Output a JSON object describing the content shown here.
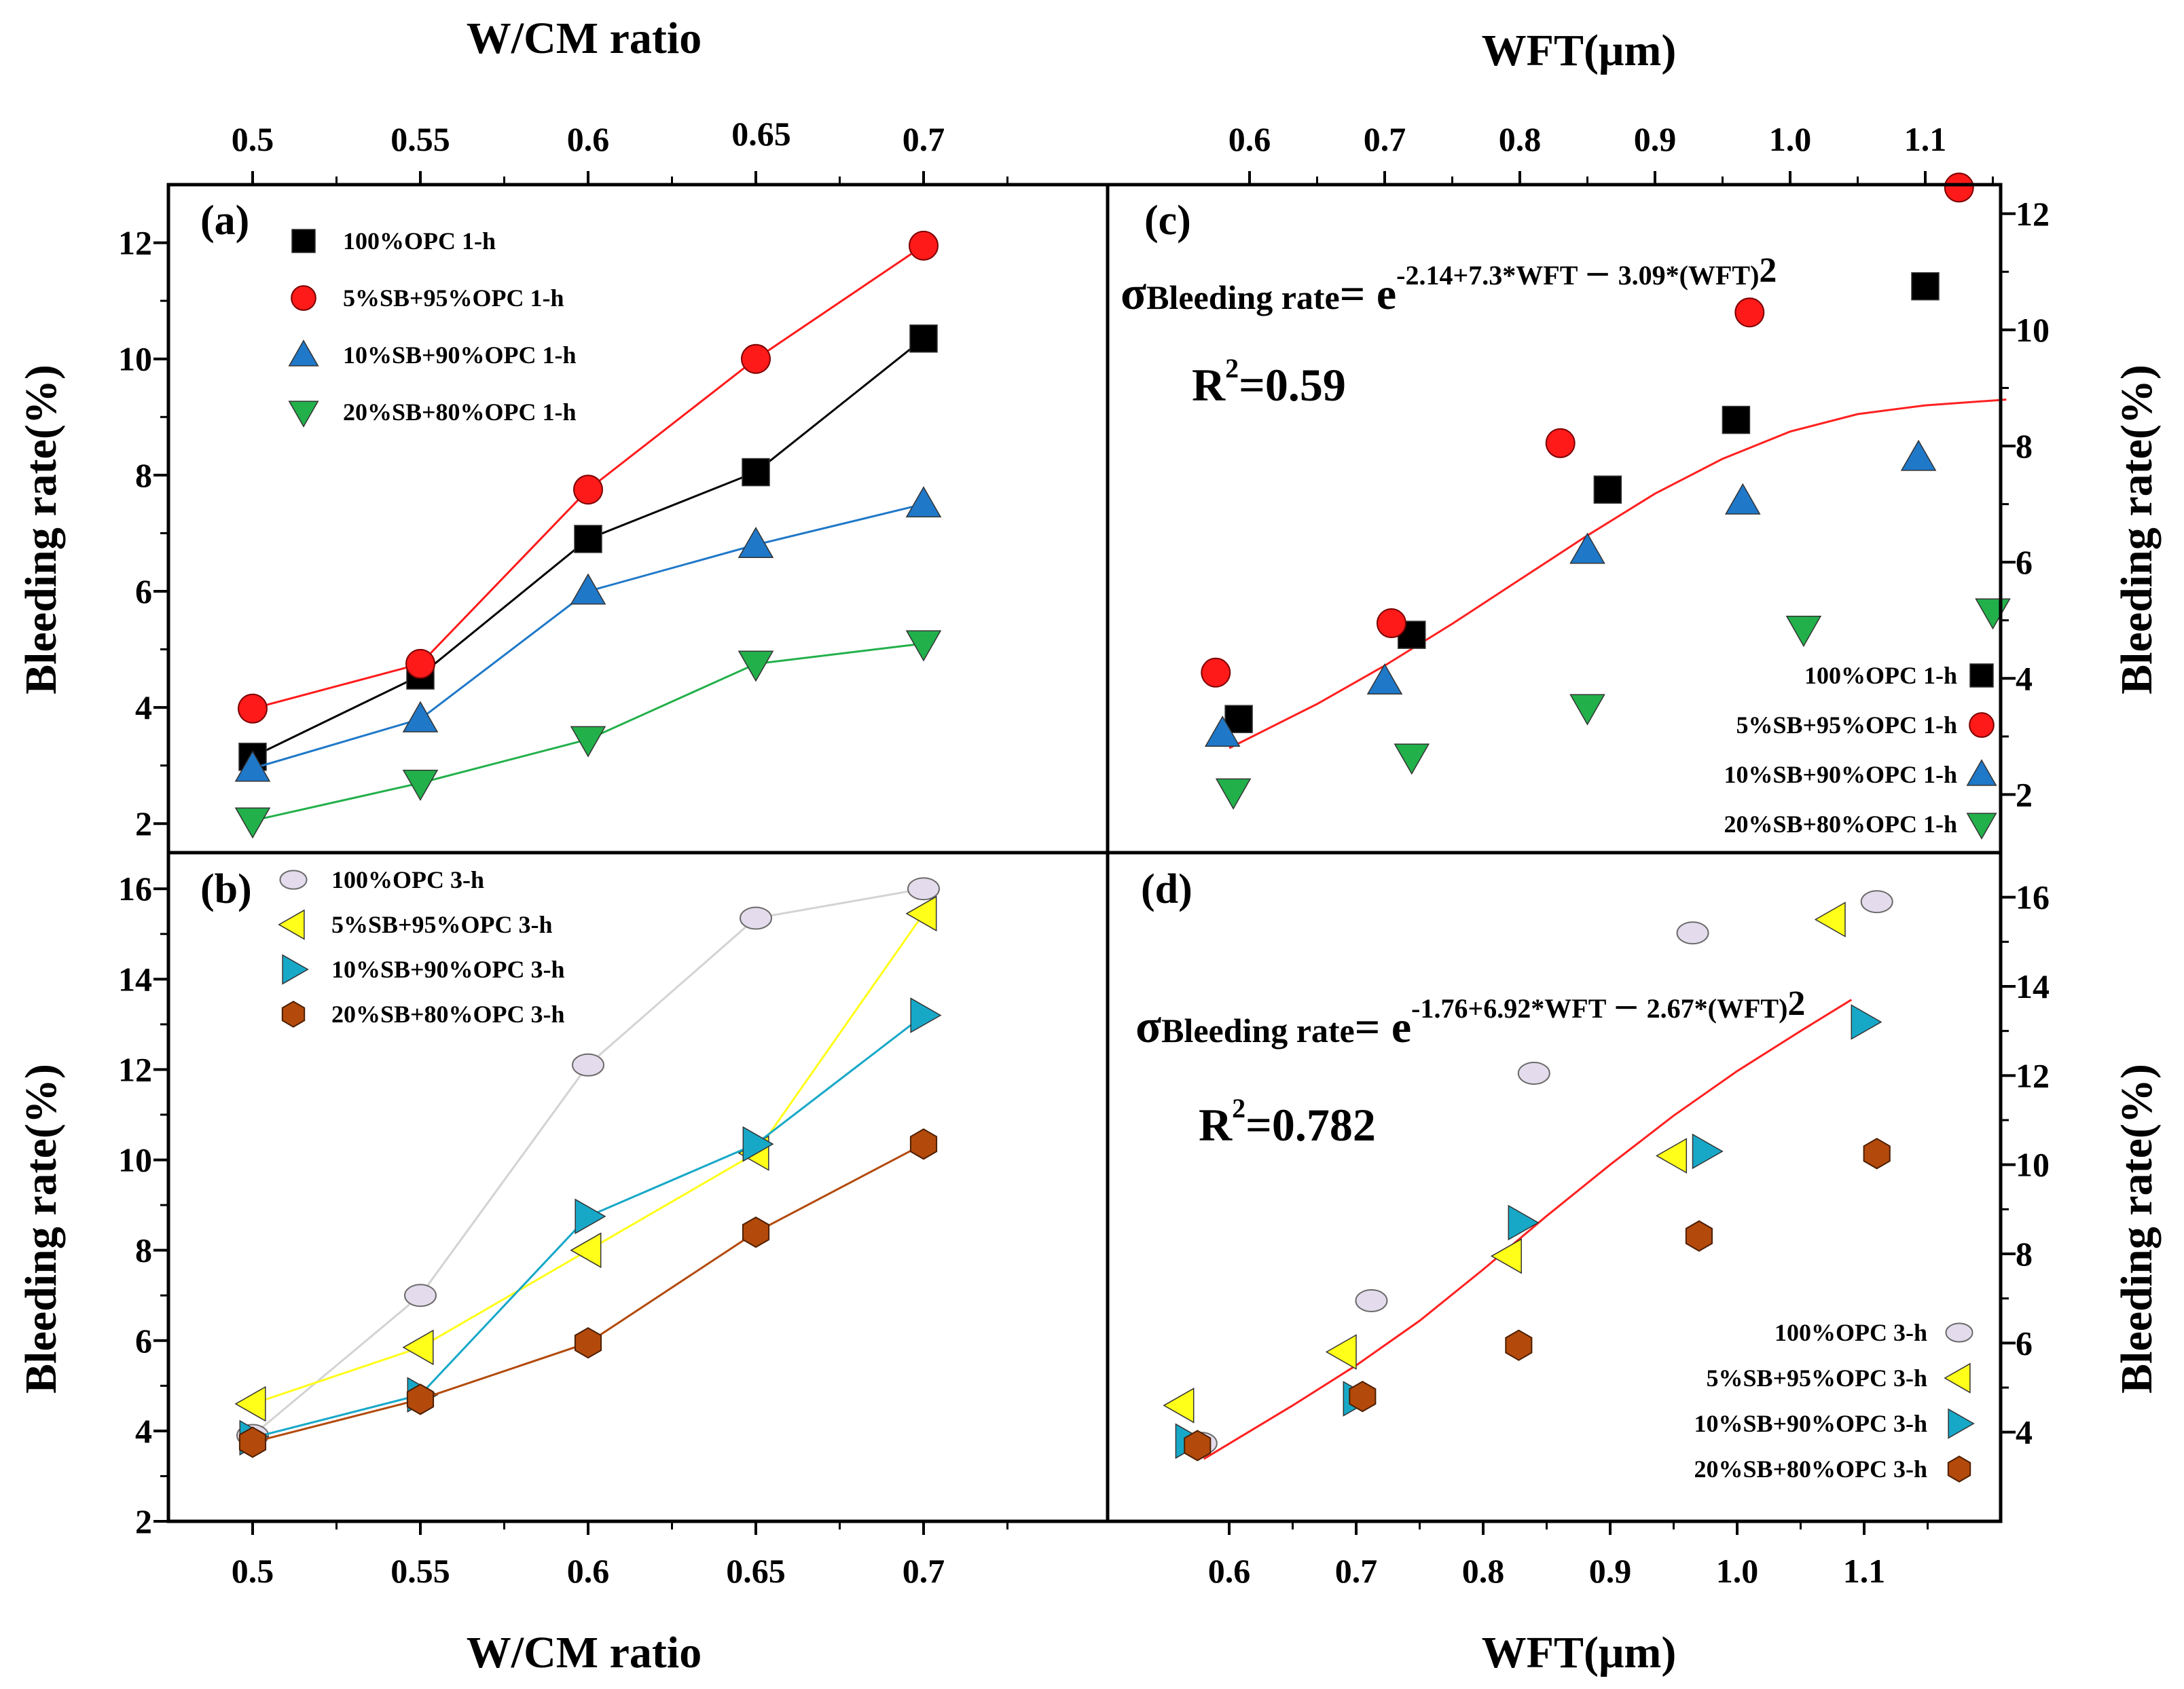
{
  "chart_data": [
    {
      "id": "a",
      "type": "line",
      "panel_label": "(a)",
      "title": "",
      "xlabel": "W/CM ratio",
      "ylabel": "Bleeding rate(%)",
      "x": [
        0.5,
        0.55,
        0.6,
        0.65,
        0.7
      ],
      "x_tick_labels": [
        "0.5",
        "0.55",
        "0.6",
        "0.65",
        "0.7"
      ],
      "xlim": [
        0.475,
        0.725
      ],
      "ylim": [
        1.5,
        13.0
      ],
      "y_ticks": [
        2,
        4,
        6,
        8,
        10,
        12
      ],
      "series": [
        {
          "name": "100%OPC 1-h",
          "marker": "square",
          "color": "#000000",
          "line": "#000000",
          "values": [
            3.15,
            4.55,
            6.9,
            8.05,
            10.35
          ]
        },
        {
          "name": "5%SB+95%OPC 1-h",
          "marker": "circle",
          "color": "#ff1a1a",
          "line": "#ff1a1a",
          "values": [
            3.98,
            4.75,
            7.75,
            10.0,
            11.95
          ]
        },
        {
          "name": "10%SB+90%OPC 1-h",
          "marker": "triangle-up",
          "color": "#1f78c8",
          "line": "#1f78c8",
          "values": [
            2.95,
            3.8,
            6.0,
            6.8,
            7.5
          ]
        },
        {
          "name": "20%SB+80%OPC 1-h",
          "marker": "triangle-down",
          "color": "#22b04a",
          "line": "#22b04a",
          "values": [
            2.05,
            2.7,
            3.45,
            4.75,
            5.1
          ]
        }
      ]
    },
    {
      "id": "b",
      "type": "line",
      "panel_label": "(b)",
      "title": "",
      "xlabel": "W/CM ratio",
      "ylabel": "Bleeding rate(%)",
      "x": [
        0.5,
        0.55,
        0.6,
        0.65,
        0.7
      ],
      "x_tick_labels": [
        "0.5",
        "0.55",
        "0.6",
        "0.65",
        "0.7"
      ],
      "xlim": [
        0.475,
        0.725
      ],
      "ylim": [
        2.0,
        16.8
      ],
      "y_ticks": [
        2,
        4,
        6,
        8,
        10,
        12,
        14,
        16
      ],
      "series": [
        {
          "name": "100%OPC 3-h",
          "marker": "ellipse",
          "color": "#e4dcec",
          "line": "#d3d3d3",
          "values": [
            3.9,
            7.0,
            12.1,
            15.35,
            16.0
          ]
        },
        {
          "name": "5%SB+95%OPC 3-h",
          "marker": "triangle-left",
          "color": "#ffff1a",
          "line": "#ffff1a",
          "values": [
            4.6,
            5.85,
            8.0,
            10.15,
            15.45
          ]
        },
        {
          "name": "10%SB+90%OPC 3-h",
          "marker": "triangle-right",
          "color": "#17a8c8",
          "line": "#17a8c8",
          "values": [
            3.85,
            4.8,
            8.75,
            10.35,
            13.2
          ]
        },
        {
          "name": "20%SB+80%OPC 3-h",
          "marker": "hexagon",
          "color": "#b34a0b",
          "line": "#b34a0b",
          "values": [
            3.75,
            4.7,
            5.95,
            8.4,
            10.35
          ]
        }
      ]
    },
    {
      "id": "c",
      "type": "scatter",
      "panel_label": "(c)",
      "title": "",
      "xlabel": "WFT(μm)",
      "ylabel": "Bleeding rate(%)",
      "x_tick_labels": [
        "0.6",
        "0.7",
        "0.8",
        "0.9",
        "1.0",
        "1.1"
      ],
      "x_ticks": [
        0.6,
        0.7,
        0.8,
        0.9,
        1.0,
        1.1
      ],
      "xlim": [
        0.5,
        1.17
      ],
      "ylim": [
        1.0,
        12.5
      ],
      "y_ticks": [
        2,
        4,
        6,
        8,
        10,
        12
      ],
      "equation": {
        "lhs_symbol": "σ",
        "lhs_sub": "Bleeding rate",
        "eq": "= e",
        "exponent": "-2.14+7.3*WFT － 3.09*(WFT)",
        "exp_power": "2"
      },
      "r2": {
        "base": "R",
        "sup": "2",
        "rest": "=0.59"
      },
      "fit": {
        "x": [
          0.585,
          0.65,
          0.7,
          0.75,
          0.8,
          0.85,
          0.9,
          0.95,
          1.0,
          1.05,
          1.1,
          1.16
        ],
        "y": [
          2.8,
          3.56,
          4.22,
          4.94,
          5.7,
          6.46,
          7.18,
          7.78,
          8.25,
          8.55,
          8.7,
          8.8
        ]
      },
      "series": [
        {
          "name": "100%OPC 1-h",
          "marker": "square",
          "color": "#000000",
          "x": [
            0.592,
            0.72,
            0.865,
            0.96,
            1.1
          ],
          "values": [
            3.3,
            4.75,
            7.25,
            8.45,
            10.75
          ]
        },
        {
          "name": "5%SB+95%OPC 1-h",
          "marker": "circle",
          "color": "#ff1a1a",
          "x": [
            0.575,
            0.705,
            0.83,
            0.97,
            1.125
          ],
          "values": [
            4.1,
            4.95,
            8.05,
            10.3,
            12.45
          ]
        },
        {
          "name": "10%SB+90%OPC 1-h",
          "marker": "triangle-up",
          "color": "#1f78c8",
          "x": [
            0.58,
            0.7,
            0.85,
            0.965,
            1.095
          ],
          "values": [
            3.05,
            3.95,
            6.2,
            7.05,
            7.8
          ]
        },
        {
          "name": "20%SB+80%OPC 1-h",
          "marker": "triangle-down",
          "color": "#22b04a",
          "x": [
            0.588,
            0.72,
            0.85,
            1.01,
            1.15
          ],
          "values": [
            2.05,
            2.65,
            3.5,
            4.85,
            5.15
          ]
        }
      ]
    },
    {
      "id": "d",
      "type": "scatter",
      "panel_label": "(d)",
      "title": "",
      "xlabel": "WFT(μm)",
      "ylabel": "Bleeding rate(%)",
      "x_tick_labels": [
        "0.6",
        "0.7",
        "0.8",
        "0.9",
        "1.0",
        "1.1"
      ],
      "x_ticks": [
        0.6,
        0.7,
        0.8,
        0.9,
        1.0,
        1.1
      ],
      "xlim": [
        0.5,
        1.2
      ],
      "ylim": [
        2.0,
        17.0
      ],
      "y_ticks": [
        4,
        6,
        8,
        10,
        12,
        14,
        16
      ],
      "equation": {
        "lhs_symbol": "σ",
        "lhs_sub": "Bleeding rate",
        "eq": "= e",
        "exponent": "-1.76+6.92*WFT － 2.67*(WFT)",
        "exp_power": "2"
      },
      "r2": {
        "base": "R",
        "sup": "2",
        "rest": "=0.782"
      },
      "fit": {
        "x": [
          0.58,
          0.65,
          0.7,
          0.75,
          0.8,
          0.85,
          0.9,
          0.95,
          1.0,
          1.05,
          1.09
        ],
        "y": [
          3.4,
          4.6,
          5.5,
          6.5,
          7.65,
          8.85,
          10.0,
          11.1,
          12.1,
          13.0,
          13.7
        ]
      },
      "series": [
        {
          "name": "100%OPC 3-h",
          "marker": "ellipse",
          "color": "#e4dcec",
          "x": [
            0.578,
            0.712,
            0.84,
            0.965,
            1.11
          ],
          "values": [
            3.75,
            6.95,
            12.05,
            15.2,
            15.9
          ]
        },
        {
          "name": "5%SB+95%OPC 3-h",
          "marker": "triangle-left",
          "color": "#ffff1a",
          "x": [
            0.562,
            0.69,
            0.82,
            0.95,
            1.075
          ],
          "values": [
            4.6,
            5.8,
            7.95,
            10.2,
            15.5
          ]
        },
        {
          "name": "10%SB+90%OPC 3-h",
          "marker": "triangle-right",
          "color": "#17a8c8",
          "x": [
            0.568,
            0.7,
            0.83,
            0.975,
            1.1
          ],
          "values": [
            3.8,
            4.75,
            8.7,
            10.3,
            13.2
          ]
        },
        {
          "name": "20%SB+80%OPC 3-h",
          "marker": "hexagon",
          "color": "#b34a0b",
          "x": [
            0.575,
            0.705,
            0.828,
            0.97,
            1.11
          ],
          "values": [
            3.7,
            4.8,
            5.95,
            8.4,
            10.25
          ]
        }
      ]
    }
  ]
}
